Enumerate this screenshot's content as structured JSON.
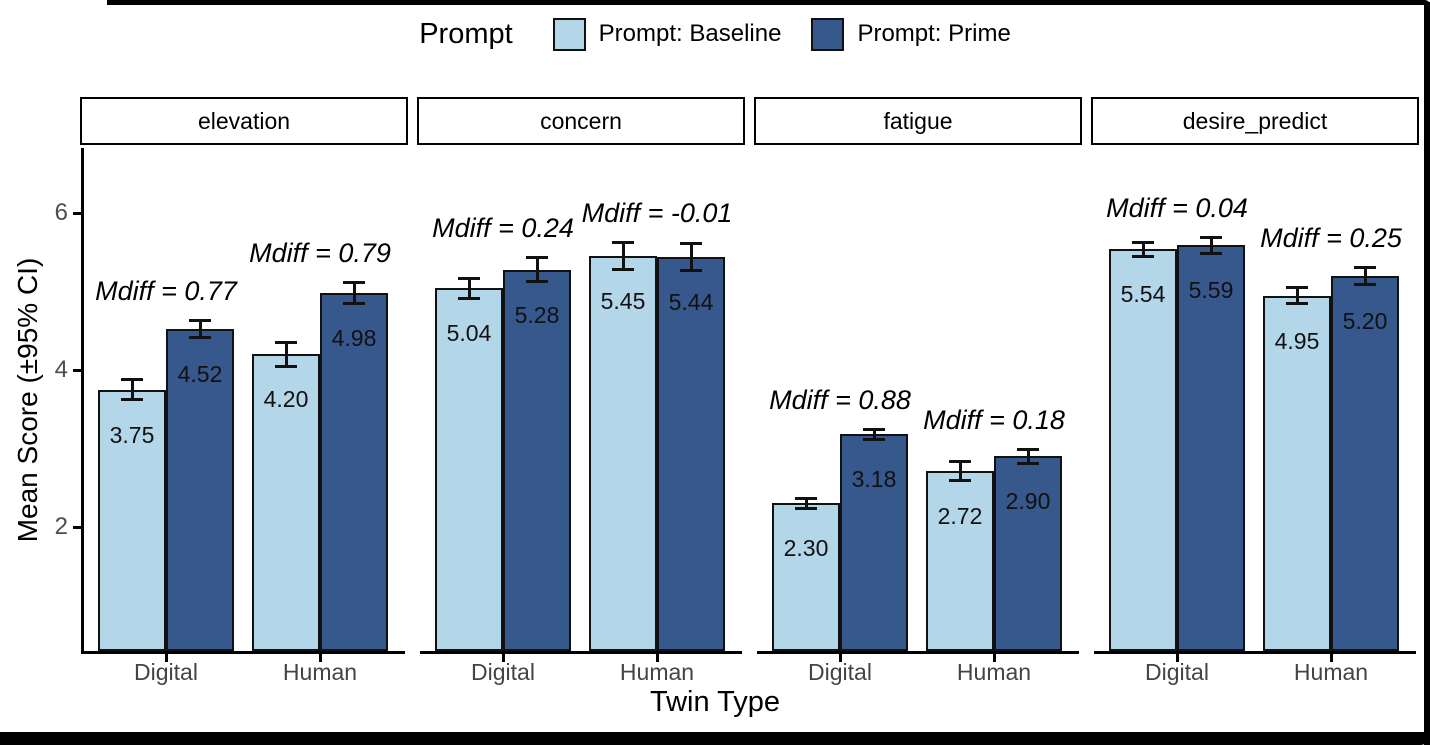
{
  "chart_data": {
    "type": "bar",
    "title": "",
    "xlabel": "Twin Type",
    "ylabel": "Mean Score (±95% CI)",
    "ylim": [
      0.42,
      6.83
    ],
    "yticks": [
      2,
      4,
      6
    ],
    "grid": false,
    "legend": {
      "title": "Prompt",
      "position": "top",
      "entries": [
        {
          "label": "Prompt: Baseline",
          "color": "#B3D6E9"
        },
        {
          "label": "Prompt: Prime",
          "color": "#36588C"
        }
      ]
    },
    "categories": [
      "Digital",
      "Human"
    ],
    "series_names": [
      "Prompt: Baseline",
      "Prompt: Prime"
    ],
    "facets": [
      {
        "name": "elevation",
        "groups": [
          {
            "category": "Digital",
            "annotation": "Mdiff = 0.77",
            "bars": [
              {
                "series": "Prompt: Baseline",
                "value": 3.75,
                "label": "3.75",
                "ci": 0.15
              },
              {
                "series": "Prompt: Prime",
                "value": 4.52,
                "label": "4.52",
                "ci": 0.13
              }
            ]
          },
          {
            "category": "Human",
            "annotation": "Mdiff = 0.79",
            "bars": [
              {
                "series": "Prompt: Baseline",
                "value": 4.2,
                "label": "4.20",
                "ci": 0.17
              },
              {
                "series": "Prompt: Prime",
                "value": 4.98,
                "label": "4.98",
                "ci": 0.15
              }
            ]
          }
        ]
      },
      {
        "name": "concern",
        "groups": [
          {
            "category": "Digital",
            "annotation": "Mdiff = 0.24",
            "bars": [
              {
                "series": "Prompt: Baseline",
                "value": 5.04,
                "label": "5.04",
                "ci": 0.15
              },
              {
                "series": "Prompt: Prime",
                "value": 5.28,
                "label": "5.28",
                "ci": 0.17
              }
            ]
          },
          {
            "category": "Human",
            "annotation": "Mdiff = -0.01",
            "bars": [
              {
                "series": "Prompt: Baseline",
                "value": 5.45,
                "label": "5.45",
                "ci": 0.19
              },
              {
                "series": "Prompt: Prime",
                "value": 5.44,
                "label": "5.44",
                "ci": 0.19
              }
            ]
          }
        ]
      },
      {
        "name": "fatigue",
        "groups": [
          {
            "category": "Digital",
            "annotation": "Mdiff = 0.88",
            "bars": [
              {
                "series": "Prompt: Baseline",
                "value": 2.3,
                "label": "2.30",
                "ci": 0.08
              },
              {
                "series": "Prompt: Prime",
                "value": 3.18,
                "label": "3.18",
                "ci": 0.08
              }
            ]
          },
          {
            "category": "Human",
            "annotation": "Mdiff = 0.18",
            "bars": [
              {
                "series": "Prompt: Baseline",
                "value": 2.72,
                "label": "2.72",
                "ci": 0.14
              },
              {
                "series": "Prompt: Prime",
                "value": 2.9,
                "label": "2.90",
                "ci": 0.11
              }
            ]
          }
        ]
      },
      {
        "name": "desire_predict",
        "groups": [
          {
            "category": "Digital",
            "annotation": "Mdiff = 0.04",
            "bars": [
              {
                "series": "Prompt: Baseline",
                "value": 5.54,
                "label": "5.54",
                "ci": 0.11
              },
              {
                "series": "Prompt: Prime",
                "value": 5.59,
                "label": "5.59",
                "ci": 0.12
              }
            ]
          },
          {
            "category": "Human",
            "annotation": "Mdiff = 0.25",
            "bars": [
              {
                "series": "Prompt: Baseline",
                "value": 4.95,
                "label": "4.95",
                "ci": 0.12
              },
              {
                "series": "Prompt: Prime",
                "value": 5.2,
                "label": "5.20",
                "ci": 0.13
              }
            ]
          }
        ]
      }
    ],
    "colors": {
      "baseline_fill": "#B3D6E9",
      "prime_fill": "#36588C",
      "bar_outline": "#111111",
      "errorbar": "#111111",
      "axis_line": "#000000",
      "tick_label": "#4d4d4d",
      "category_label": "#444444",
      "annotation": "#000000",
      "frame": "#000000"
    }
  }
}
